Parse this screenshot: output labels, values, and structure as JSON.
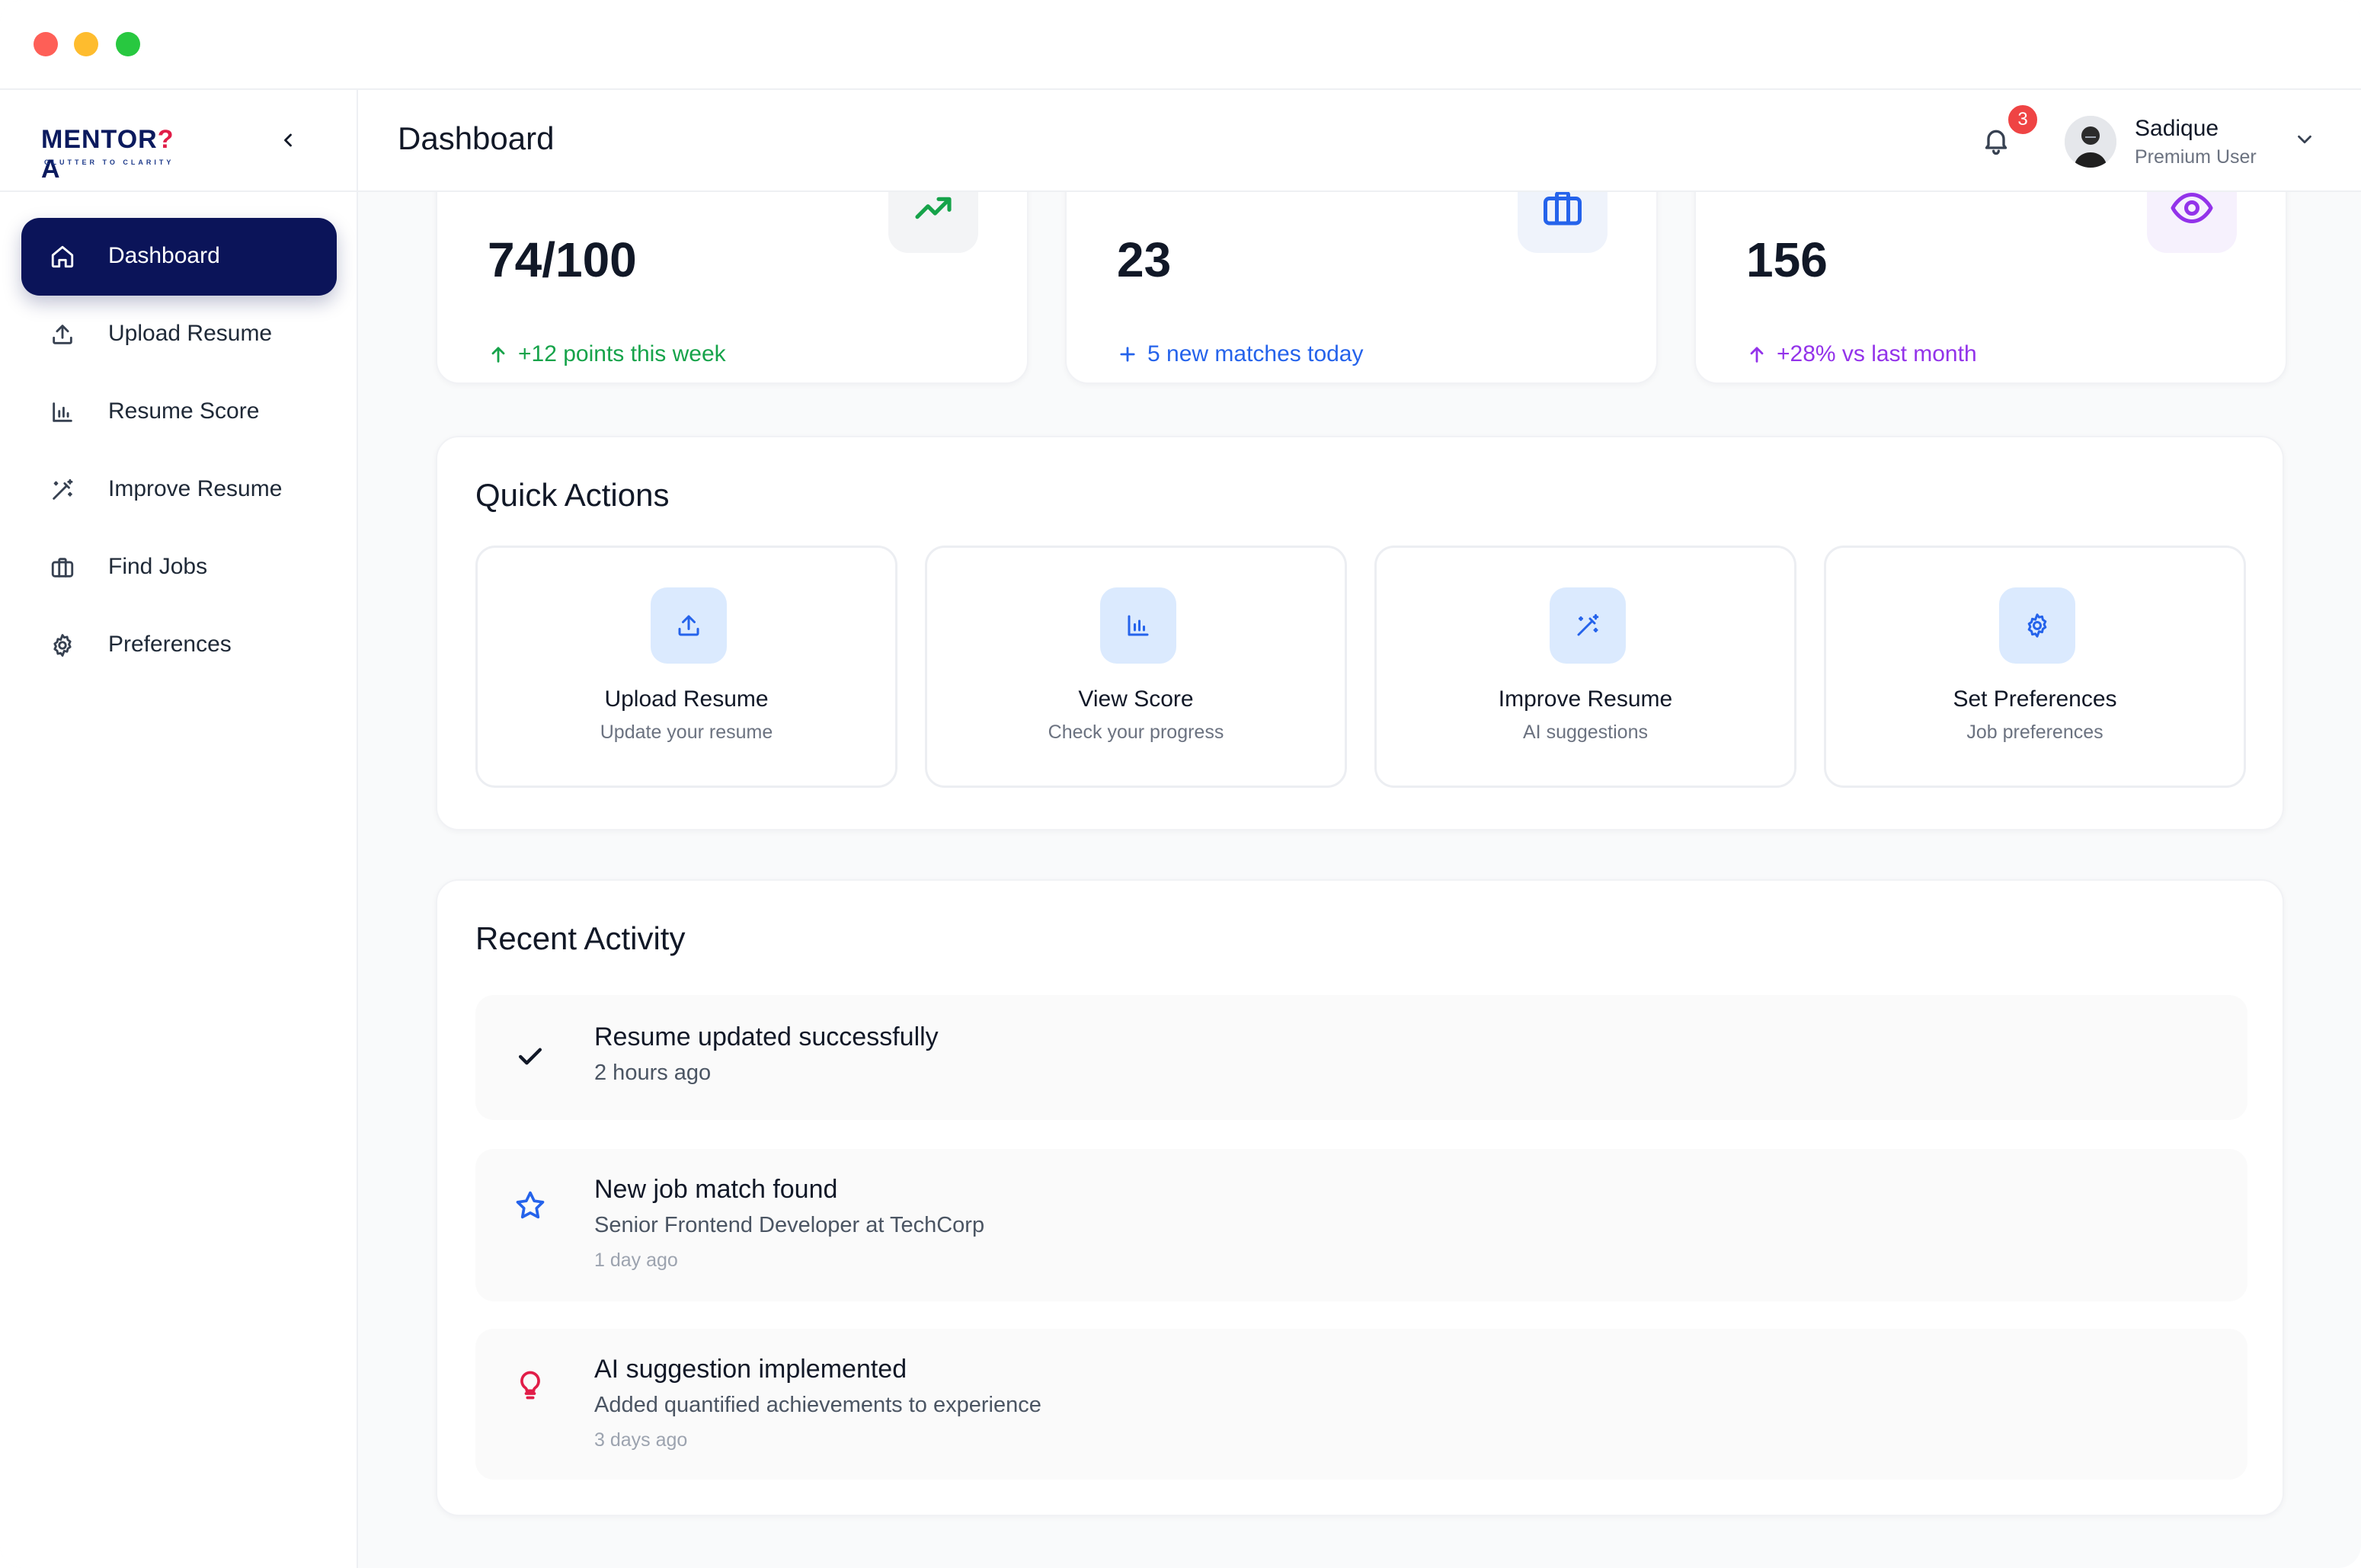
{
  "brand": {
    "name_main": "MENTOR",
    "name_q": "?",
    "name_tail": "A",
    "tagline": "CLUTTER TO CLARITY"
  },
  "sidebar": {
    "items": [
      {
        "label": "Dashboard",
        "icon": "home-icon",
        "active": true
      },
      {
        "label": "Upload Resume",
        "icon": "upload-icon",
        "active": false
      },
      {
        "label": "Resume Score",
        "icon": "bar-chart-icon",
        "active": false
      },
      {
        "label": "Improve Resume",
        "icon": "magic-wand-icon",
        "active": false
      },
      {
        "label": "Find Jobs",
        "icon": "briefcase-icon",
        "active": false
      },
      {
        "label": "Preferences",
        "icon": "gear-icon",
        "active": false
      }
    ]
  },
  "header": {
    "title": "Dashboard",
    "notification_count": "3",
    "user_name": "Sadique",
    "user_role": "Premium User"
  },
  "stats": [
    {
      "value": "74/100",
      "trend": "+12 points this week",
      "trend_icon": "arrow-up-icon",
      "icon": "trending-up-icon",
      "color": "#16a34a",
      "bg": "#f3f4f6"
    },
    {
      "value": "23",
      "trend": "5 new matches today",
      "trend_icon": "plus-icon",
      "icon": "briefcase-icon",
      "color": "#2563eb",
      "bg": "#eff3fb"
    },
    {
      "value": "156",
      "trend": "+28% vs last month",
      "trend_icon": "arrow-up-icon",
      "icon": "eye-icon",
      "color": "#9333ea",
      "bg": "#f6f1fd"
    }
  ],
  "quick_actions": {
    "title": "Quick Actions",
    "items": [
      {
        "title": "Upload Resume",
        "subtitle": "Update your resume",
        "icon": "upload-icon"
      },
      {
        "title": "View Score",
        "subtitle": "Check your progress",
        "icon": "bar-chart-icon"
      },
      {
        "title": "Improve Resume",
        "subtitle": "AI suggestions",
        "icon": "magic-wand-icon"
      },
      {
        "title": "Set Preferences",
        "subtitle": "Job preferences",
        "icon": "gear-icon"
      }
    ]
  },
  "recent_activity": {
    "title": "Recent Activity",
    "items": [
      {
        "title": "Resume updated successfully",
        "subtitle": "2 hours ago",
        "time": "",
        "icon": "check-icon"
      },
      {
        "title": "New job match found",
        "subtitle": "Senior Frontend Developer at TechCorp",
        "time": "1 day ago",
        "icon": "star-icon"
      },
      {
        "title": "AI suggestion implemented",
        "subtitle": "Added quantified achievements to experience",
        "time": "3 days ago",
        "icon": "lightbulb-icon"
      }
    ]
  },
  "colors": {
    "accent": "#0b1459",
    "badge": "#ef4444",
    "icon_blue": "#2563eb",
    "qa_icon_bg": "#dbeafe"
  }
}
